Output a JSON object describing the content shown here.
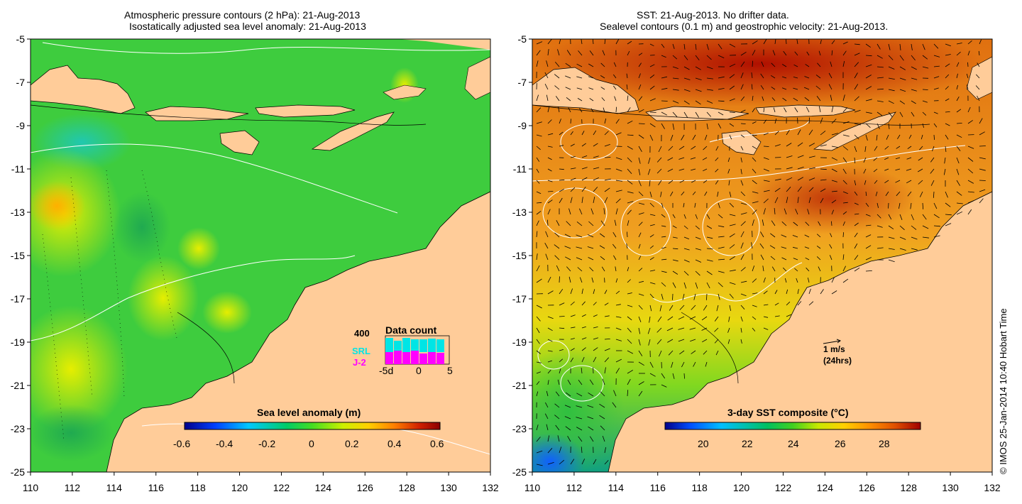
{
  "left_panel": {
    "title_line1": "Atmospheric pressure contours (2 hPa): 21-Aug-2013",
    "title_line2": "Isostatically adjusted sea level anomaly: 21-Aug-2013",
    "colorbar": {
      "label": "Sea level anomaly (m)",
      "ticks": [
        "-0.6",
        "-0.4",
        "-0.2",
        "0",
        "0.2",
        "0.4",
        "0.6"
      ],
      "colors": [
        "#00008b",
        "#0040ff",
        "#00c8ff",
        "#00cc66",
        "#44dd22",
        "#ccf000",
        "#ffd000",
        "#ff8000",
        "#d02000",
        "#8b0000"
      ]
    },
    "data_count": {
      "title": "Data count",
      "ymax_label": "400",
      "series1": "SRL",
      "series2": "J-2",
      "series1_color": "#00e5e5",
      "series2_color": "#ff00ff",
      "x_ticks": [
        "-5d",
        "0",
        "5"
      ]
    }
  },
  "right_panel": {
    "title_line1": "SST: 21-Aug-2013. No drifter data.",
    "title_line2": "Sealevel contours (0.1 m) and geostrophic velocity: 21-Aug-2013.",
    "colorbar": {
      "label": "3-day SST composite (°C)",
      "ticks": [
        "20",
        "22",
        "24",
        "26",
        "28"
      ],
      "colors": [
        "#00008b",
        "#0050ff",
        "#00bfff",
        "#00c060",
        "#40d020",
        "#c8e800",
        "#ffd000",
        "#ff9000",
        "#e05000",
        "#a00000"
      ]
    },
    "velocity_key": {
      "line1": "1 m/s",
      "line2": "(24hrs)"
    }
  },
  "axes": {
    "x_ticks": [
      "110",
      "112",
      "114",
      "116",
      "118",
      "120",
      "122",
      "124",
      "126",
      "128",
      "130",
      "132"
    ],
    "y_ticks": [
      "-5",
      "-7",
      "-9",
      "-11",
      "-13",
      "-15",
      "-17",
      "-19",
      "-21",
      "-23",
      "-25"
    ]
  },
  "colors": {
    "land": "#ffcc99",
    "ocean_left": "#3ecc3e",
    "ocean_right": "#f0a020"
  },
  "credit": "© IMOS 25-Jan-2014 10:40 Hobart Time"
}
